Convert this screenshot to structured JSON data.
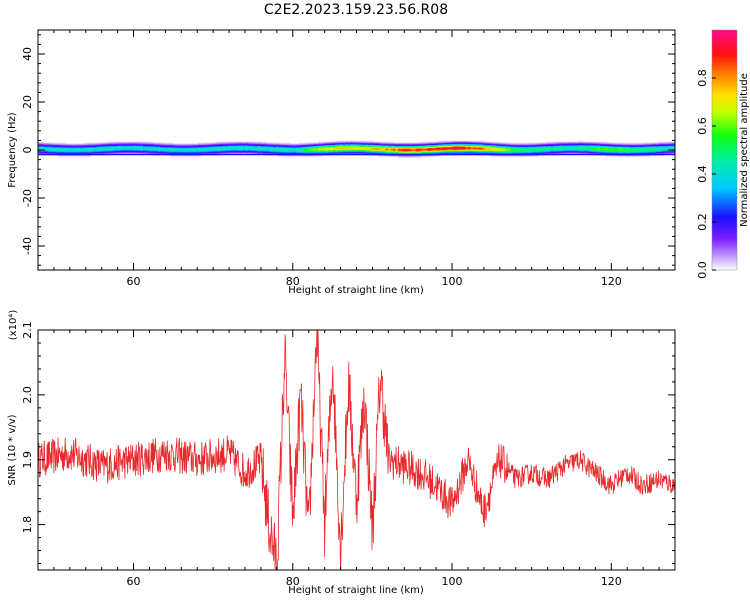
{
  "title": "C2E2.2023.159.23.56.R08",
  "colors": {
    "snr_line": "#e8282b",
    "axis": "#000000",
    "background": "#ffffff"
  },
  "chart_data": [
    {
      "type": "heatmap",
      "title": "C2E2.2023.159.23.56.R08",
      "xlabel": "Height of straight line (km)",
      "ylabel": "Frequency (Hz)",
      "xlim": [
        48,
        128
      ],
      "ylim": [
        -50,
        50
      ],
      "x_ticks": [
        60,
        80,
        100,
        120
      ],
      "y_ticks": [
        40,
        20,
        0,
        -20,
        -40
      ],
      "band_center_hz": 0.5,
      "band_halfwidth_hz": 2,
      "intensity_profile": {
        "x_km": [
          48,
          55,
          60,
          65,
          70,
          75,
          80,
          82,
          84,
          86,
          88,
          90,
          92,
          94,
          96,
          98,
          100,
          102,
          104,
          106,
          108,
          112,
          116,
          118,
          120,
          124,
          128
        ],
        "peak": [
          0.42,
          0.42,
          0.41,
          0.41,
          0.42,
          0.44,
          0.45,
          0.6,
          0.72,
          0.75,
          0.72,
          0.78,
          0.82,
          0.88,
          0.9,
          0.92,
          0.96,
          0.9,
          0.82,
          0.7,
          0.55,
          0.47,
          0.5,
          0.58,
          0.6,
          0.52,
          0.45
        ]
      },
      "colorbar": {
        "label": "Normalized spectral amplitude",
        "range": [
          0,
          1
        ],
        "ticks": [
          "0.0",
          "0.2",
          "0.4",
          "0.6",
          "0.8"
        ]
      }
    },
    {
      "type": "line",
      "xlabel": "Height of straight line (km)",
      "ylabel": "SNR (10 * v/v)",
      "scale_label": "(x10⁴)",
      "xlim": [
        48,
        128
      ],
      "ylim": [
        1.73,
        2.1
      ],
      "x_ticks": [
        60,
        80,
        100,
        120
      ],
      "y_ticks": [
        "1.8",
        "1.9",
        "2.0",
        "2.1"
      ],
      "series": [
        {
          "name": "SNR",
          "x": [
            48,
            52,
            56,
            60,
            64,
            68,
            72,
            74,
            76,
            77,
            78,
            79,
            80,
            81,
            82,
            83,
            84,
            85,
            86,
            87,
            88,
            89,
            90,
            91,
            92,
            94,
            96,
            98,
            100,
            102,
            104,
            106,
            108,
            110,
            112,
            114,
            116,
            118,
            120,
            122,
            124,
            126,
            128
          ],
          "y": [
            1.9,
            1.91,
            1.89,
            1.9,
            1.91,
            1.9,
            1.91,
            1.88,
            1.9,
            1.8,
            1.74,
            2.06,
            1.81,
            2.0,
            1.78,
            2.1,
            1.8,
            2.05,
            1.76,
            2.02,
            1.84,
            2.0,
            1.79,
            2.03,
            1.9,
            1.89,
            1.88,
            1.86,
            1.83,
            1.9,
            1.82,
            1.9,
            1.87,
            1.88,
            1.87,
            1.89,
            1.9,
            1.88,
            1.86,
            1.88,
            1.86,
            1.87,
            1.86
          ]
        }
      ]
    }
  ]
}
